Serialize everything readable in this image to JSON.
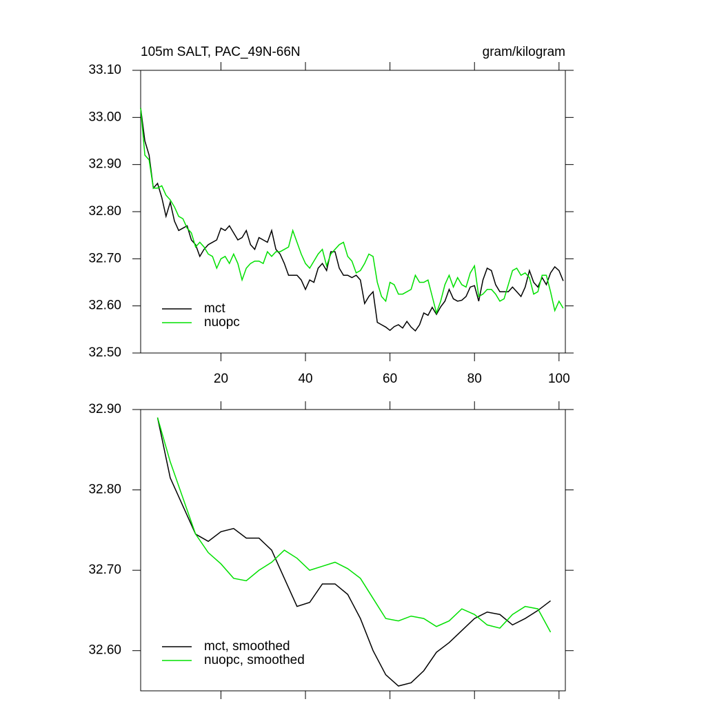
{
  "chart_data": [
    {
      "type": "line",
      "title": "105m SALT, PAC_49N-66N",
      "units": "gram/kilogram",
      "x": [
        1,
        2,
        3,
        4,
        5,
        6,
        7,
        8,
        9,
        10,
        11,
        12,
        13,
        14,
        15,
        16,
        17,
        18,
        19,
        20,
        21,
        22,
        23,
        24,
        25,
        26,
        27,
        28,
        29,
        30,
        31,
        32,
        33,
        34,
        35,
        36,
        37,
        38,
        39,
        40,
        41,
        42,
        43,
        44,
        45,
        46,
        47,
        48,
        49,
        50,
        51,
        52,
        53,
        54,
        55,
        56,
        57,
        58,
        59,
        60,
        61,
        62,
        63,
        64,
        65,
        66,
        67,
        68,
        69,
        70,
        71,
        72,
        73,
        74,
        75,
        76,
        77,
        78,
        79,
        80,
        81,
        82,
        83,
        84,
        85,
        86,
        87,
        88,
        89,
        90,
        91,
        92,
        93,
        94,
        95,
        96,
        97,
        98,
        99,
        100,
        101
      ],
      "series": [
        {
          "name": "mct",
          "color": "#000000",
          "values": [
            33.02,
            32.95,
            32.92,
            32.85,
            32.86,
            32.83,
            32.79,
            32.82,
            32.78,
            32.76,
            32.765,
            32.77,
            32.74,
            32.73,
            32.705,
            32.72,
            32.73,
            32.735,
            32.74,
            32.765,
            32.76,
            32.77,
            32.755,
            32.74,
            32.745,
            32.76,
            32.73,
            32.72,
            32.745,
            32.74,
            32.735,
            32.76,
            32.72,
            32.71,
            32.69,
            32.665,
            32.665,
            32.665,
            32.655,
            32.635,
            32.655,
            32.65,
            32.68,
            32.69,
            32.675,
            32.715,
            32.715,
            32.68,
            32.665,
            32.665,
            32.66,
            32.665,
            32.655,
            32.605,
            32.62,
            32.63,
            32.565,
            32.56,
            32.555,
            32.548,
            32.556,
            32.56,
            32.553,
            32.567,
            32.555,
            32.547,
            32.56,
            32.585,
            32.58,
            32.597,
            32.582,
            32.598,
            32.61,
            32.635,
            32.615,
            32.61,
            32.612,
            32.62,
            32.64,
            32.643,
            32.61,
            32.655,
            32.68,
            32.675,
            32.645,
            32.63,
            32.63,
            32.63,
            32.64,
            32.63,
            32.62,
            32.64,
            32.675,
            32.65,
            32.64,
            32.66,
            32.645,
            32.67,
            32.683,
            32.675,
            32.653
          ]
        },
        {
          "name": "nuopc",
          "color": "#00e000",
          "values": [
            33.02,
            32.92,
            32.91,
            32.85,
            32.85,
            32.855,
            32.835,
            32.825,
            32.81,
            32.79,
            32.785,
            32.765,
            32.755,
            32.725,
            32.735,
            32.725,
            32.71,
            32.705,
            32.68,
            32.7,
            32.705,
            32.69,
            32.71,
            32.69,
            32.655,
            32.68,
            32.69,
            32.695,
            32.695,
            32.69,
            32.715,
            32.705,
            32.715,
            32.715,
            32.72,
            32.725,
            32.76,
            32.735,
            32.71,
            32.69,
            32.68,
            32.695,
            32.71,
            32.72,
            32.685,
            32.71,
            32.72,
            32.73,
            32.735,
            32.705,
            32.695,
            32.67,
            32.675,
            32.69,
            32.71,
            32.705,
            32.65,
            32.62,
            32.61,
            32.65,
            32.645,
            32.625,
            32.625,
            32.63,
            32.635,
            32.665,
            32.65,
            32.65,
            32.655,
            32.62,
            32.585,
            32.61,
            32.645,
            32.665,
            32.64,
            32.66,
            32.645,
            32.64,
            32.67,
            32.685,
            32.62,
            32.625,
            32.635,
            32.635,
            32.625,
            32.61,
            32.615,
            32.645,
            32.675,
            32.68,
            32.665,
            32.67,
            32.66,
            32.625,
            32.63,
            32.665,
            32.665,
            32.63,
            32.59,
            32.61,
            32.595
          ]
        }
      ],
      "xlim": [
        1,
        101.5
      ],
      "xticks": [
        20,
        40,
        60,
        80,
        100
      ],
      "xtick_labels": true,
      "ylim": [
        32.5,
        33.1
      ],
      "yticks": [
        {
          "value": 32.5,
          "label": "32.50"
        },
        {
          "value": 32.6,
          "label": "32.60"
        },
        {
          "value": 32.7,
          "label": "32.70"
        },
        {
          "value": 32.8,
          "label": "32.80"
        },
        {
          "value": 32.9,
          "label": "32.90"
        },
        {
          "value": 33.0,
          "label": "33.00"
        },
        {
          "value": 33.1,
          "label": "33.10"
        }
      ],
      "legend": "lower left"
    },
    {
      "type": "line",
      "x": [
        5,
        8,
        11,
        14,
        17,
        20,
        23,
        26,
        29,
        32,
        35,
        38,
        41,
        44,
        47,
        50,
        53,
        56,
        59,
        62,
        65,
        68,
        71,
        74,
        77,
        80,
        83,
        86,
        89,
        92,
        95,
        98
      ],
      "series": [
        {
          "name": "mct, smoothed",
          "color": "#000000",
          "values": [
            32.89,
            32.815,
            32.78,
            32.745,
            32.736,
            32.748,
            32.752,
            32.74,
            32.74,
            32.725,
            32.69,
            32.655,
            32.66,
            32.683,
            32.683,
            32.67,
            32.64,
            32.6,
            32.57,
            32.556,
            32.56,
            32.575,
            32.598,
            32.61,
            32.625,
            32.64,
            32.648,
            32.645,
            32.632,
            32.64,
            32.65,
            32.662
          ]
        },
        {
          "name": "nuopc, smoothed",
          "color": "#00e000",
          "values": [
            32.89,
            32.835,
            32.79,
            32.745,
            32.722,
            32.708,
            32.69,
            32.687,
            32.7,
            32.71,
            32.725,
            32.715,
            32.7,
            32.705,
            32.71,
            32.702,
            32.69,
            32.665,
            32.64,
            32.637,
            32.643,
            32.64,
            32.63,
            32.637,
            32.652,
            32.645,
            32.632,
            32.628,
            32.645,
            32.655,
            32.652,
            32.623
          ]
        }
      ],
      "xlim": [
        1,
        101.5
      ],
      "xticks": [
        20,
        40,
        60,
        80,
        100
      ],
      "xtick_labels": false,
      "ylim": [
        32.55,
        32.9
      ],
      "yticks": [
        {
          "value": 32.6,
          "label": "32.60"
        },
        {
          "value": 32.7,
          "label": "32.70"
        },
        {
          "value": 32.8,
          "label": "32.80"
        },
        {
          "value": 32.9,
          "label": "32.90"
        }
      ],
      "legend": "lower left"
    }
  ]
}
